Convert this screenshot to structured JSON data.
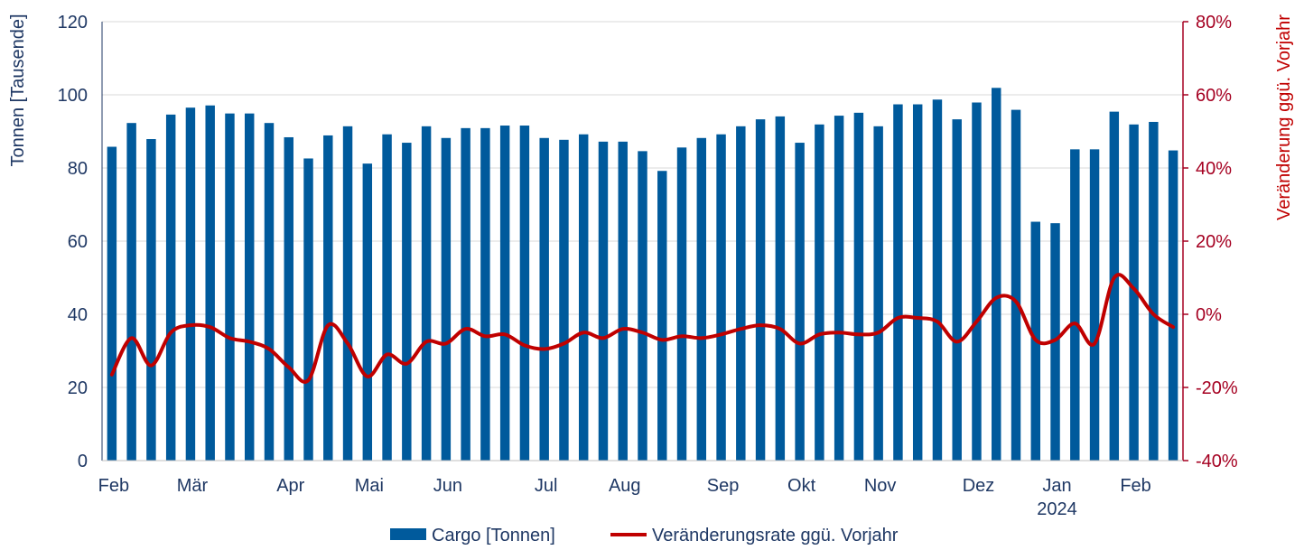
{
  "chart_data": {
    "type": "bar",
    "title": "",
    "xlabel": "",
    "ylabel": "Tonnen [Tausende]",
    "y2label": "Veränderung ggü. Vorjahr",
    "ylim": [
      0,
      120
    ],
    "y2lim": [
      -40,
      80
    ],
    "yticks": [
      "0",
      "20",
      "40",
      "60",
      "80",
      "100",
      "120"
    ],
    "y2ticks": [
      "-40%",
      "-20%",
      "0%",
      "20%",
      "40%",
      "60%",
      "80%"
    ],
    "grid": true,
    "legend_position": "bottom",
    "colors": {
      "bars": "#005a9c",
      "line": "#c00000",
      "axis_left": "#1f3864",
      "axis_right": "#a50021",
      "grid": "#d9d9d9"
    },
    "month_labels": [
      {
        "label": "Feb",
        "index": 0
      },
      {
        "label": "Mär",
        "index": 4
      },
      {
        "label": "Apr",
        "index": 9
      },
      {
        "label": "Mai",
        "index": 13
      },
      {
        "label": "Jun",
        "index": 17
      },
      {
        "label": "Jul",
        "index": 22
      },
      {
        "label": "Aug",
        "index": 26
      },
      {
        "label": "Sep",
        "index": 31
      },
      {
        "label": "Okt",
        "index": 35
      },
      {
        "label": "Nov",
        "index": 39
      },
      {
        "label": "Dez",
        "index": 44
      },
      {
        "label": "Jan",
        "index": 48
      },
      {
        "label": "Feb",
        "index": 52
      }
    ],
    "year_label": {
      "label": "2024",
      "index": 48
    },
    "series": [
      {
        "name": "Cargo [Tonnen]",
        "type": "bar",
        "axis": "left",
        "values": [
          85.8,
          92.3,
          87.9,
          94.6,
          96.5,
          97.1,
          94.9,
          94.9,
          92.3,
          88.4,
          82.6,
          88.9,
          91.4,
          81.2,
          89.2,
          86.9,
          91.4,
          88.2,
          90.9,
          90.9,
          91.6,
          91.6,
          88.2,
          87.7,
          89.2,
          87.2,
          87.2,
          84.6,
          79.2,
          85.6,
          88.2,
          89.2,
          91.4,
          93.3,
          94.1,
          86.9,
          91.9,
          94.3,
          95.1,
          91.4,
          97.4,
          97.4,
          98.7,
          93.3,
          97.9,
          101.9,
          95.9,
          65.3,
          64.9,
          85.1,
          85.1,
          95.4,
          91.9,
          92.6,
          84.8
        ]
      },
      {
        "name": "Veränderungsrate ggü. Vorjahr",
        "type": "line",
        "axis": "right",
        "values": [
          -16.5,
          -6.5,
          -14,
          -5,
          -3,
          -3.5,
          -6.5,
          -7.5,
          -9.5,
          -14.5,
          -18,
          -3,
          -8,
          -17,
          -11,
          -13.5,
          -7.5,
          -8,
          -4,
          -6,
          -5.5,
          -8.5,
          -9.5,
          -8,
          -5,
          -6.5,
          -4,
          -5,
          -7,
          -6,
          -6.5,
          -5.5,
          -4,
          -3,
          -4,
          -8,
          -5.5,
          -5,
          -5.5,
          -5,
          -1,
          -1,
          -2,
          -7.5,
          -2,
          4.5,
          3.5,
          -7,
          -7,
          -2.5,
          -8,
          10,
          7,
          0,
          -3.5
        ]
      }
    ]
  }
}
